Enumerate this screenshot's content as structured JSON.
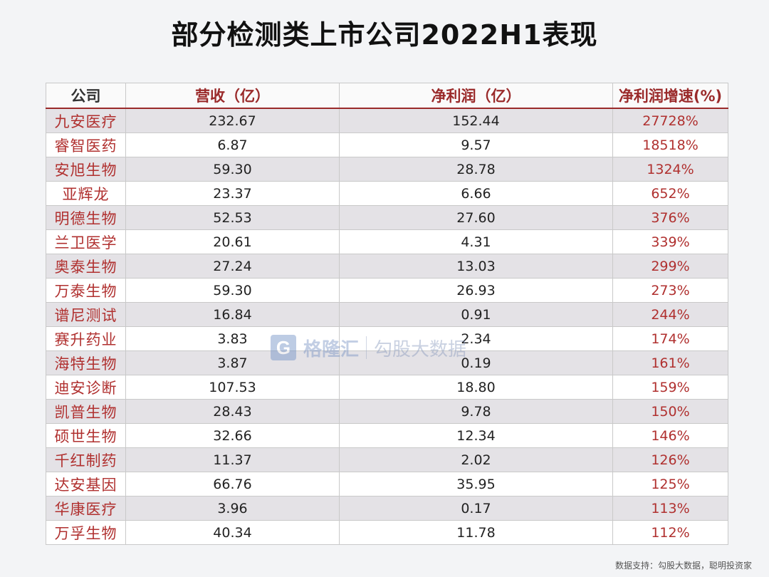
{
  "title": "部分检测类上市公司2022H1表现",
  "headers": [
    "公司",
    "营收（亿）",
    "净利润（亿）",
    "净利润增速(%)"
  ],
  "rows": [
    {
      "name": "九安医疗",
      "revenue": "232.67",
      "profit": "152.44",
      "growth": "27728%"
    },
    {
      "name": "睿智医药",
      "revenue": "6.87",
      "profit": "9.57",
      "growth": "18518%"
    },
    {
      "name": "安旭生物",
      "revenue": "59.30",
      "profit": "28.78",
      "growth": "1324%"
    },
    {
      "name": "亚辉龙",
      "revenue": "23.37",
      "profit": "6.66",
      "growth": "652%"
    },
    {
      "name": "明德生物",
      "revenue": "52.53",
      "profit": "27.60",
      "growth": "376%"
    },
    {
      "name": "兰卫医学",
      "revenue": "20.61",
      "profit": "4.31",
      "growth": "339%"
    },
    {
      "name": "奥泰生物",
      "revenue": "27.24",
      "profit": "13.03",
      "growth": "299%"
    },
    {
      "name": "万泰生物",
      "revenue": "59.30",
      "profit": "26.93",
      "growth": "273%"
    },
    {
      "name": "谱尼测试",
      "revenue": "16.84",
      "profit": "0.91",
      "growth": "244%"
    },
    {
      "name": "赛升药业",
      "revenue": "3.83",
      "profit": "2.34",
      "growth": "174%"
    },
    {
      "name": "海特生物",
      "revenue": "3.87",
      "profit": "0.19",
      "growth": "161%"
    },
    {
      "name": "迪安诊断",
      "revenue": "107.53",
      "profit": "18.80",
      "growth": "159%"
    },
    {
      "name": "凯普生物",
      "revenue": "28.43",
      "profit": "9.78",
      "growth": "150%"
    },
    {
      "name": "硕世生物",
      "revenue": "32.66",
      "profit": "12.34",
      "growth": "146%"
    },
    {
      "name": "千红制药",
      "revenue": "11.37",
      "profit": "2.02",
      "growth": "126%"
    },
    {
      "name": "达安基因",
      "revenue": "66.76",
      "profit": "35.95",
      "growth": "125%"
    },
    {
      "name": "华康医疗",
      "revenue": "3.96",
      "profit": "0.17",
      "growth": "113%"
    },
    {
      "name": "万孚生物",
      "revenue": "40.34",
      "profit": "11.78",
      "growth": "112%"
    }
  ],
  "watermark": {
    "logo_letter": "G",
    "brand": "格隆汇",
    "secondary": "勾股大数据"
  },
  "footer": "数据支持：勾股大数据，聪明投资家",
  "colors": {
    "accent": "#b0302f",
    "stripe": "#e4e2e6"
  }
}
